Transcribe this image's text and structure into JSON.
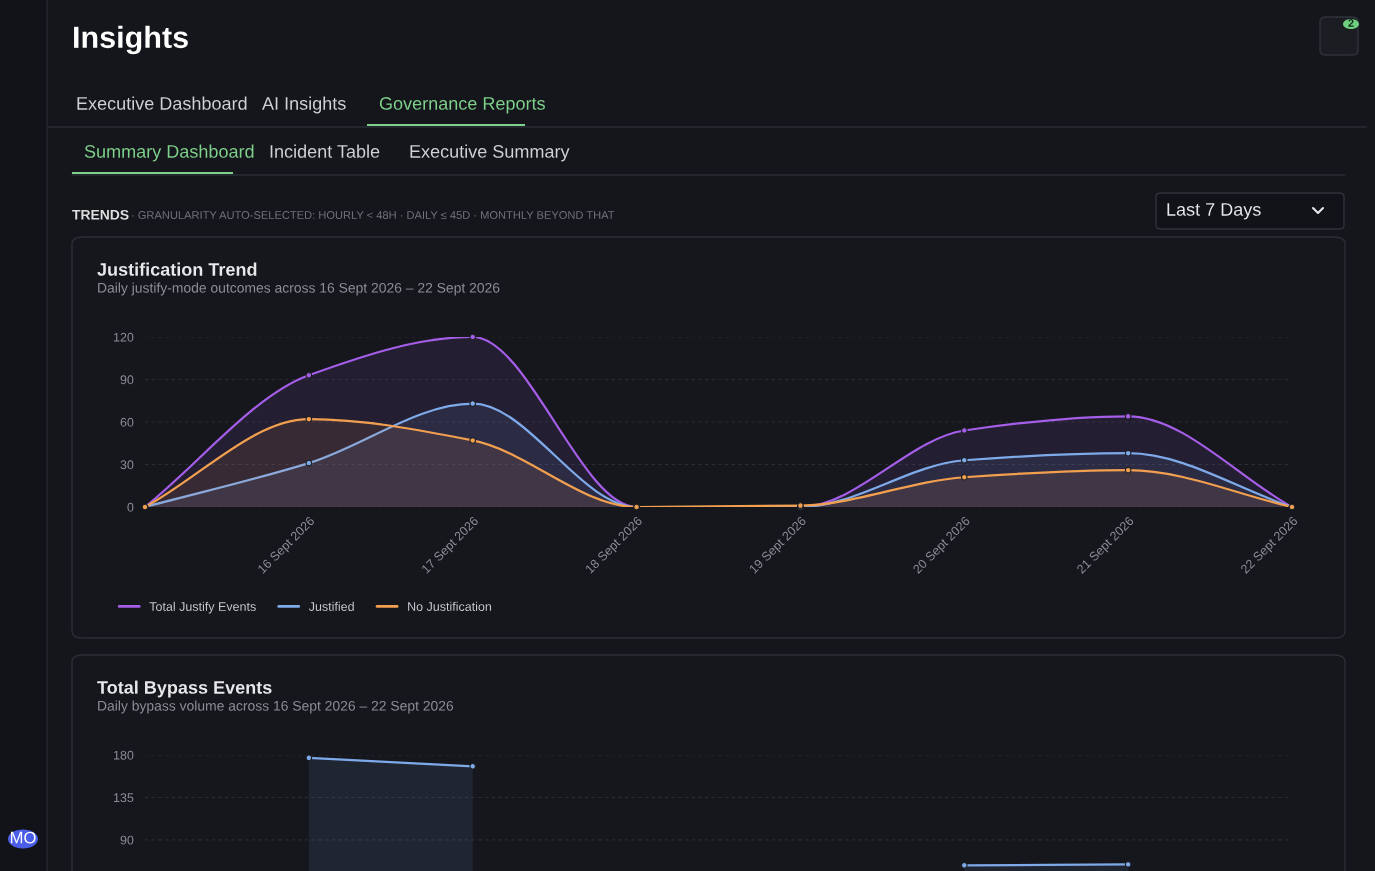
{
  "chart_data": [
    {
      "type": "area",
      "title": "Justification Trend",
      "subtitle": "Daily justify-mode outcomes across 16 Sept 2026 – 22 Sept 2026",
      "categories": [
        null,
        "16 Sept 2026",
        "17 Sept 2026",
        "18 Sept 2026",
        "19 Sept 2026",
        "20 Sept 2026",
        "21 Sept 2026",
        "22 Sept 2026"
      ],
      "series": [
        {
          "name": "Total Justify Events",
          "color": "#a55ee8",
          "values": [
            0,
            93,
            120,
            0,
            0,
            54,
            64,
            0
          ]
        },
        {
          "name": "Justified",
          "color": "#7eaaea",
          "values": [
            0,
            31,
            73,
            0,
            0,
            33,
            38,
            0
          ]
        },
        {
          "name": "No Justification",
          "color": "#f2a050",
          "values": [
            0,
            62,
            47,
            0,
            1,
            21,
            26,
            0
          ]
        }
      ],
      "ylim": [
        0,
        120
      ],
      "yticks": [
        0,
        30,
        60,
        90,
        120
      ],
      "grid": "y",
      "legend": "bottom",
      "marker": "circle",
      "annotations": [
        "Insights",
        "Executive Dashboard",
        "AI Insights",
        "Governance Reports",
        "Summary Dashboard",
        "Incident Table",
        "Executive Summary",
        "TRENDS",
        "· GRANULARITY AUTO-SELECTED: HOURLY < 48H · DAILY ≤ 45D · MONTHLY BEYOND THAT",
        "Last 7 Days",
        "2",
        "MO"
      ]
    },
    {
      "type": "area",
      "title": "Total Bypass Events",
      "subtitle": "Daily bypass volume across 16 Sept 2026 – 22 Sept 2026",
      "categories": [
        null,
        null,
        null,
        null,
        null,
        null,
        null,
        null
      ],
      "series": [
        {
          "color": "#7eaaea",
          "values": [
            null,
            177,
            168,
            null,
            null,
            63,
            64,
            null
          ]
        }
      ],
      "ylim": [
        57,
        180
      ],
      "yticks": [
        90,
        135,
        180
      ],
      "grid": "y",
      "marker": "circle",
      "tick_labels": "y"
    }
  ]
}
